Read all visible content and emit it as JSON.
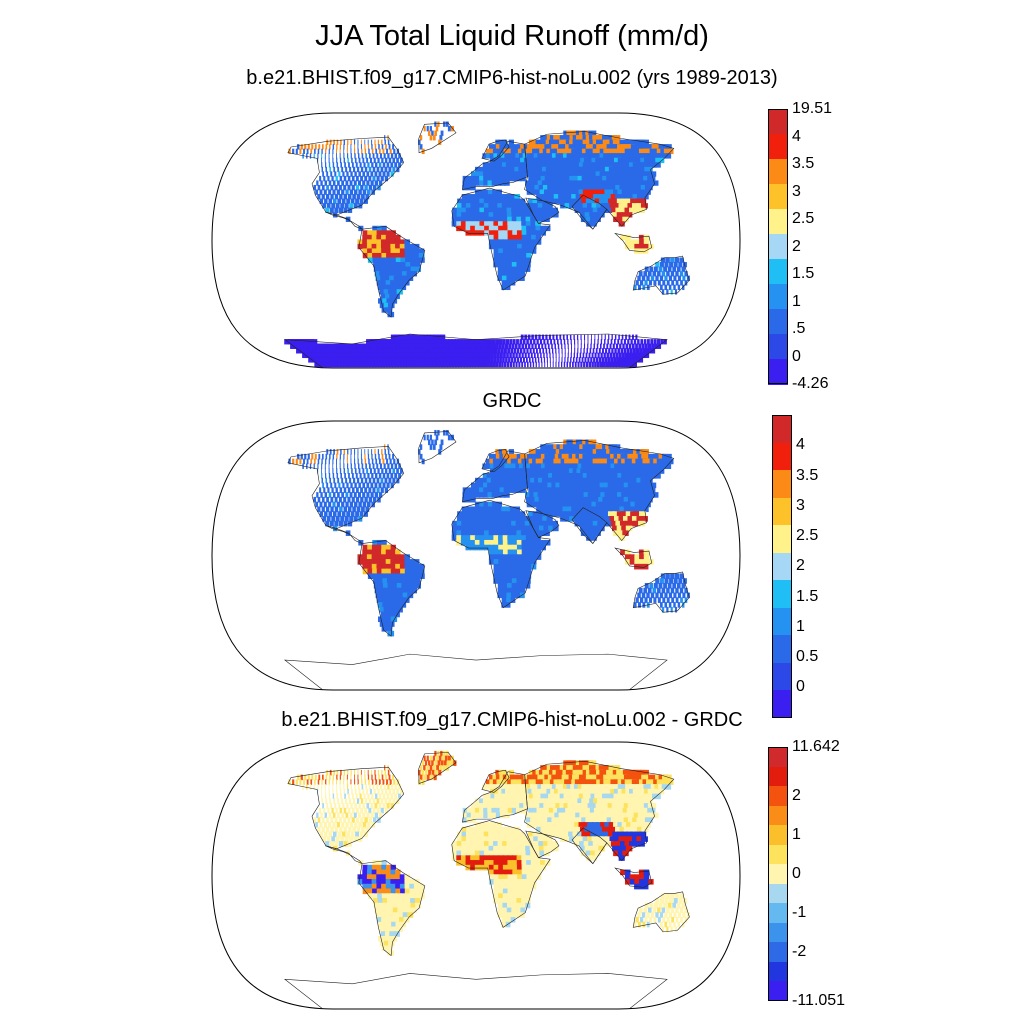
{
  "title": "JJA Total Liquid Runoff (mm/d)",
  "panels": [
    {
      "id": "model",
      "title": "b.e21.BHIST.f09_g17.CMIP6-hist-noLu.002 (yrs 1989-2013)",
      "colorbar": {
        "colors": [
          "#3b1ff0",
          "#2c48e6",
          "#2a6ae8",
          "#2591f0",
          "#1fbff5",
          "#a6d8f5",
          "#fff28a",
          "#fdc12a",
          "#fb8a17",
          "#f0200c",
          "#d1282a"
        ],
        "labels": [
          "-4.26",
          "0",
          ".5",
          "1",
          "1.5",
          "2",
          "2.5",
          "3",
          "3.5",
          "4",
          "19.51"
        ]
      }
    },
    {
      "id": "obs",
      "title": "GRDC",
      "colorbar": {
        "colors": [
          "#3b1ff0",
          "#2c48e6",
          "#2a6ae8",
          "#2591f0",
          "#1fbff5",
          "#a6d8f5",
          "#fff28a",
          "#fdc12a",
          "#fb8a17",
          "#f0200c",
          "#d1282a"
        ],
        "labels": [
          "",
          "0",
          "0.5",
          "1",
          "1.5",
          "2",
          "2.5",
          "3",
          "3.5",
          "4",
          ""
        ]
      }
    },
    {
      "id": "diff",
      "title": "b.e21.BHIST.f09_g17.CMIP6-hist-noLu.002 - GRDC",
      "colorbar": {
        "colors": [
          "#3b1ff0",
          "#2236e0",
          "#2f6ae6",
          "#3b93ec",
          "#63b9f0",
          "#a8d8ef",
          "#fff5b0",
          "#fde25e",
          "#fbbf2c",
          "#f98d18",
          "#f3520f",
          "#e21d0e",
          "#d12a2c"
        ],
        "labels": [
          "-11.051",
          "",
          "-2",
          "",
          "-1",
          "",
          "0",
          "",
          "1",
          "",
          "2",
          "",
          "11.642"
        ]
      }
    }
  ]
}
